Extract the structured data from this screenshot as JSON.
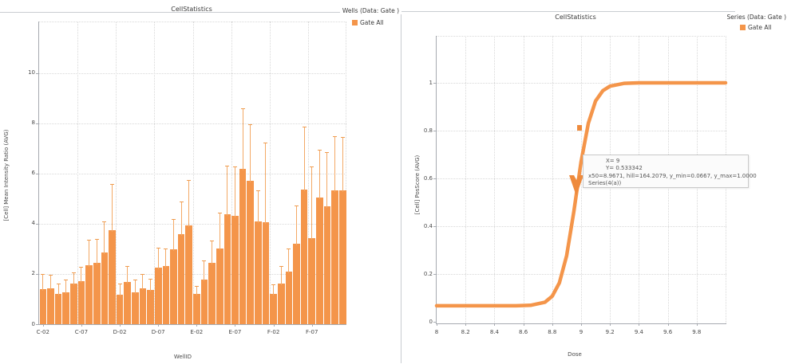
{
  "chart_data": [
    {
      "type": "bar",
      "title": "CellStatistics",
      "legend_title": "Wells (Data: Gate )",
      "legend_items": [
        "Gate All"
      ],
      "legend_position": "top-right",
      "xlabel": "WellID",
      "ylabel": "[Cell] Mean Intensity Ratio (AVG)",
      "x_tick_labels": [
        "C-02",
        "C-07",
        "D-02",
        "D-07",
        "E-02",
        "E-07",
        "F-02",
        "F-07"
      ],
      "x_tick_every": 5,
      "y_ticks": [
        0,
        2,
        4,
        6,
        8,
        10
      ],
      "ylim": [
        0,
        12
      ],
      "grid": true,
      "values": [
        1.38,
        1.43,
        1.22,
        1.28,
        1.63,
        1.7,
        2.36,
        2.43,
        2.84,
        3.75,
        1.18,
        1.68,
        1.28,
        1.43,
        1.35,
        2.26,
        2.32,
        2.97,
        3.59,
        3.93,
        1.19,
        1.79,
        2.43,
        3.0,
        4.38,
        4.3,
        6.17,
        5.72,
        4.1,
        4.05,
        1.22,
        1.63,
        2.08,
        3.19,
        5.37,
        3.41,
        5.03,
        4.68,
        5.32,
        5.34
      ],
      "error_tops": [
        2.0,
        1.97,
        1.62,
        1.78,
        2.06,
        2.28,
        3.37,
        3.39,
        4.1,
        5.57,
        1.62,
        2.32,
        1.78,
        2.0,
        1.82,
        3.05,
        3.0,
        4.2,
        4.9,
        5.75,
        1.53,
        2.53,
        3.34,
        4.45,
        6.3,
        6.27,
        8.6,
        7.95,
        5.34,
        7.23,
        1.6,
        2.31,
        3.0,
        4.73,
        7.88,
        6.29,
        6.93,
        6.86,
        7.49,
        7.44
      ]
    },
    {
      "type": "line",
      "title": "CellStatistics",
      "legend_title": "Series (Data: Gate )",
      "legend_items": [
        "Gate All"
      ],
      "legend_position": "top-right",
      "xlabel": "Dose",
      "ylabel": "[Cell] PosScore (AVG)",
      "x_ticks": [
        8,
        8.2,
        8.4,
        8.6,
        8.8,
        9,
        9.2,
        9.4,
        9.6,
        9.8
      ],
      "y_ticks": [
        0,
        0.2,
        0.4,
        0.6,
        0.8,
        1
      ],
      "xlim": [
        8,
        10
      ],
      "ylim": [
        0,
        1.2
      ],
      "grid": true,
      "fit_params": {
        "x50": 8.9671,
        "hill": 164.2079,
        "y_min": 0.0667,
        "y_max": 1.0
      },
      "marker_point": {
        "x": 8.9671,
        "y": 0.533342
      },
      "curve_points": [
        [
          8.0,
          0.067
        ],
        [
          8.2,
          0.067
        ],
        [
          8.4,
          0.067
        ],
        [
          8.55,
          0.067
        ],
        [
          8.65,
          0.069
        ],
        [
          8.75,
          0.082
        ],
        [
          8.8,
          0.107
        ],
        [
          8.85,
          0.163
        ],
        [
          8.9,
          0.277
        ],
        [
          8.95,
          0.461
        ],
        [
          8.9671,
          0.533
        ],
        [
          9.0,
          0.67
        ],
        [
          9.05,
          0.831
        ],
        [
          9.1,
          0.924
        ],
        [
          9.15,
          0.967
        ],
        [
          9.2,
          0.986
        ],
        [
          9.3,
          0.998
        ],
        [
          9.4,
          1.0
        ],
        [
          9.6,
          1.0
        ],
        [
          9.8,
          1.0
        ],
        [
          10.0,
          1.0
        ]
      ]
    }
  ],
  "tooltip": {
    "lines": [
      "X= 9",
      "Y= 0.533342",
      "x50=8.9671, hill=164.2079, y_min=0.0667, y_max=1.0000",
      "Series(4(a))"
    ]
  },
  "colors": {
    "series_orange": "#F4954A",
    "whisker": "#F3A966",
    "whisker_cap": "#EF9C4F",
    "marker_arrow": "#EE8A3C",
    "axis": "#A6AAB0",
    "grid": "#D8D8D8",
    "panel_border": "#C9CDD1",
    "tooltip_bg": "#FBFBFB",
    "tooltip_border": "#C9C9C9",
    "tooltip_text": "#555555"
  }
}
